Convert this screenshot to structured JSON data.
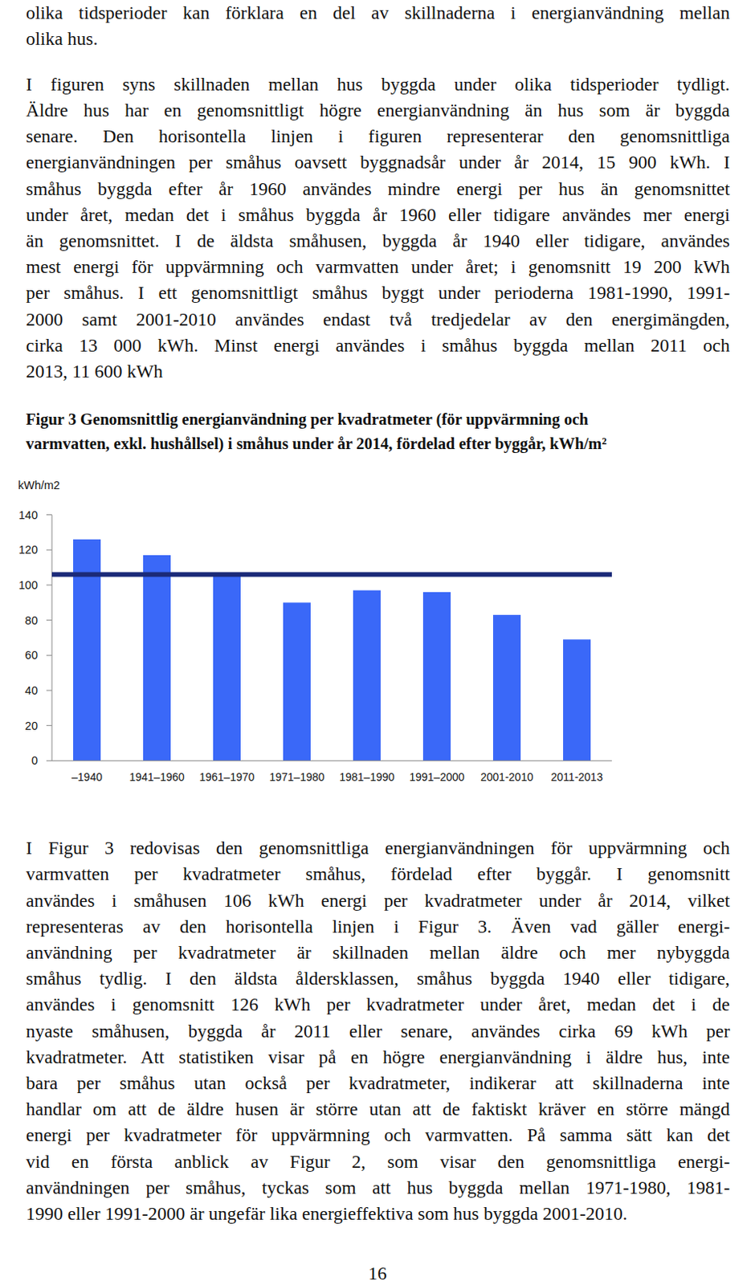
{
  "paragraphs": [
    {
      "lines": [
        "olika tidsperioder kan förklara en del av skillnaderna i energianvändning mellan",
        "olika hus."
      ]
    },
    {
      "lines": [
        "I figuren syns skillnaden mellan hus byggda under olika tidsperioder tydligt.",
        "Äldre hus har en genomsnittligt högre energianvändning än hus som är byggda",
        "senare. Den horisontella linjen i figuren representerar den genomsnittliga",
        "energianvändningen per småhus oavsett byggnadsår under år 2014, 15 900 kWh. I",
        "småhus byggda efter år 1960 användes mindre energi per hus än genomsnittet",
        "under året, medan det i småhus byggda år 1960 eller tidigare användes mer energi",
        "än genomsnittet. I de äldsta småhusen, byggda år 1940 eller tidigare, användes",
        "mest energi för uppvärmning och varmvatten under året; i genomsnitt 19 200 kWh",
        "per småhus. I ett genomsnittligt småhus byggt under perioderna 1981-1990, 1991-",
        "2000 samt 2001-2010 användes endast två tredjedelar av den energimängden,",
        "cirka 13 000 kWh. Minst energi användes i småhus byggda mellan 2011 och",
        "2013, 11 600 kWh"
      ]
    },
    {
      "lines": [
        "I Figur 3 redovisas den genomsnittliga energianvändningen för uppvärmning och",
        "varmvatten per kvadratmeter småhus, fördelad efter byggår. I genomsnitt",
        "användes i småhusen 106 kWh energi per kvadratmeter under år 2014, vilket",
        "representeras av den horisontella linjen i Figur 3. Även vad gäller energi-",
        "användning per kvadratmeter är skillnaden mellan äldre och mer nybyggda",
        "småhus tydlig. I den äldsta åldersklassen, småhus byggda 1940 eller tidigare,",
        "användes i genomsnitt 126 kWh per kvadratmeter under året, medan det i de",
        "nyaste småhusen, byggda år 2011 eller senare, användes cirka 69 kWh per",
        "kvadratmeter. Att statistiken visar på en högre energianvändning i äldre hus, inte",
        "bara per småhus utan också per kvadratmeter, indikerar att skillnaderna inte",
        "handlar om att de äldre husen är större utan att de faktiskt kräver en större mängd",
        "energi per kvadratmeter för uppvärmning och varmvatten. På samma sätt kan det",
        "vid en första anblick av Figur 2, som visar den genomsnittliga energi-",
        "användningen per småhus, tyckas som att hus byggda mellan 1971-1980, 1981-",
        "1990 eller 1991-2000 är ungefär lika energieffektiva som hus byggda 2001-2010."
      ]
    }
  ],
  "caption": [
    "Figur 3 Genomsnittlig energianvändning per kvadratmeter (för uppvärmning och",
    "varmvatten, exkl. hushållsel) i småhus under år 2014, fördelad efter byggår, kWh/m²"
  ],
  "chart_data": {
    "type": "bar",
    "ylabel": "kWh/m2",
    "categories": [
      "–1940",
      "1941–1960",
      "1961–1970",
      "1971–1980",
      "1981–1990",
      "1991–2000",
      "2001-2010",
      "2011-2013"
    ],
    "values": [
      126,
      117,
      107,
      90,
      97,
      96,
      83,
      69
    ],
    "color": "#3a68f8",
    "ylim": [
      0,
      140
    ],
    "yticks": [
      0,
      20,
      40,
      60,
      80,
      100,
      120,
      140
    ],
    "grid": false,
    "reference_line": {
      "value": 106,
      "color": "#1b2a78"
    }
  },
  "page_number": "16"
}
